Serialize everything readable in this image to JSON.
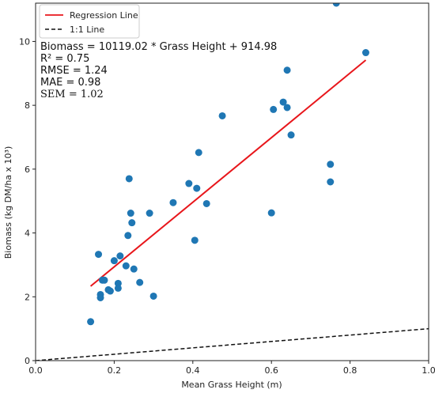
{
  "chart_data": {
    "type": "scatter",
    "xlabel": "Mean Grass Height (m)",
    "ylabel": "Biomass (kg DM/ha x 10³)",
    "xlim": [
      0.0,
      1.0
    ],
    "ylim": [
      0,
      11.2
    ],
    "xticks": [
      "0.0",
      "0.2",
      "0.4",
      "0.6",
      "0.8",
      "1.0"
    ],
    "yticks": [
      "0",
      "2",
      "4",
      "6",
      "8",
      "10"
    ],
    "xtick_values": [
      0.0,
      0.2,
      0.4,
      0.6,
      0.8,
      1.0
    ],
    "ytick_values": [
      0,
      2,
      4,
      6,
      8,
      10
    ],
    "grid": false,
    "legend_position": "top-left",
    "legend": [
      {
        "label": "Regression Line",
        "color": "#e8161b",
        "style": "solid"
      },
      {
        "label": "1:1 Line",
        "color": "#111111",
        "style": "dashed"
      }
    ],
    "point_color": "#1f77b4",
    "points": [
      {
        "x": 0.14,
        "y": 1.22
      },
      {
        "x": 0.16,
        "y": 3.33
      },
      {
        "x": 0.165,
        "y": 2.07
      },
      {
        "x": 0.165,
        "y": 1.97
      },
      {
        "x": 0.17,
        "y": 2.52
      },
      {
        "x": 0.175,
        "y": 2.52
      },
      {
        "x": 0.185,
        "y": 2.22
      },
      {
        "x": 0.19,
        "y": 2.18
      },
      {
        "x": 0.2,
        "y": 3.13
      },
      {
        "x": 0.21,
        "y": 2.42
      },
      {
        "x": 0.21,
        "y": 2.27
      },
      {
        "x": 0.215,
        "y": 3.28
      },
      {
        "x": 0.23,
        "y": 2.97
      },
      {
        "x": 0.235,
        "y": 3.92
      },
      {
        "x": 0.238,
        "y": 5.7
      },
      {
        "x": 0.242,
        "y": 4.62
      },
      {
        "x": 0.245,
        "y": 4.32
      },
      {
        "x": 0.25,
        "y": 2.87
      },
      {
        "x": 0.265,
        "y": 2.45
      },
      {
        "x": 0.29,
        "y": 4.62
      },
      {
        "x": 0.3,
        "y": 2.02
      },
      {
        "x": 0.35,
        "y": 4.95
      },
      {
        "x": 0.39,
        "y": 5.55
      },
      {
        "x": 0.405,
        "y": 3.77
      },
      {
        "x": 0.41,
        "y": 5.4
      },
      {
        "x": 0.415,
        "y": 6.52
      },
      {
        "x": 0.435,
        "y": 4.92
      },
      {
        "x": 0.475,
        "y": 7.67
      },
      {
        "x": 0.6,
        "y": 4.63
      },
      {
        "x": 0.605,
        "y": 7.87
      },
      {
        "x": 0.63,
        "y": 8.1
      },
      {
        "x": 0.64,
        "y": 9.1
      },
      {
        "x": 0.64,
        "y": 7.93
      },
      {
        "x": 0.65,
        "y": 7.07
      },
      {
        "x": 0.75,
        "y": 6.15
      },
      {
        "x": 0.75,
        "y": 5.6
      },
      {
        "x": 0.765,
        "y": 11.2
      },
      {
        "x": 0.84,
        "y": 9.65
      }
    ],
    "regression": {
      "slope": 10.11902,
      "intercept": 0.91498,
      "x_range": [
        0.14,
        0.84
      ],
      "color": "#e8161b"
    },
    "identity_line": {
      "x_range": [
        0.0,
        1.0
      ],
      "color": "#111111"
    },
    "annotations": [
      "Biomass = 10119.02 * Grass Height + 914.98",
      "R² = 0.75",
      "RMSE = 1.24",
      "MAE = 0.98",
      "SEM = 1.02"
    ]
  }
}
